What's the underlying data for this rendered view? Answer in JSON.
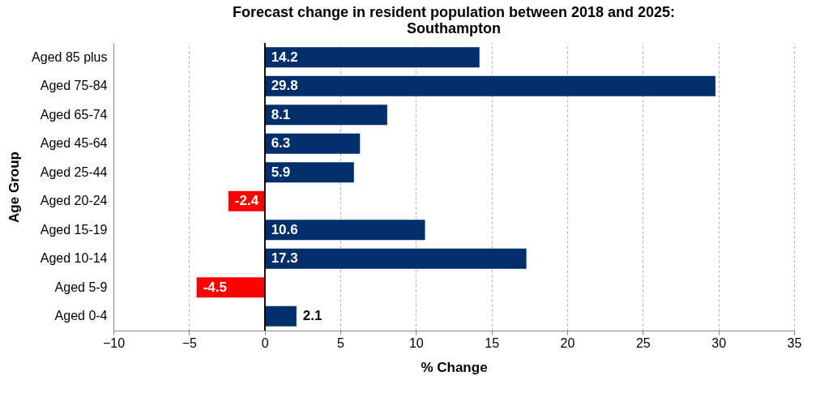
{
  "chart_data": {
    "type": "bar",
    "orientation": "horizontal",
    "title": "Forecast change in resident population between 2018 and 2025:\nSouthampton",
    "xlabel": "% Change",
    "ylabel": "Age Group",
    "categories": [
      "Aged 85 plus",
      "Aged 75-84",
      "Aged 65-74",
      "Aged 45-64",
      "Aged 25-44",
      "Aged 20-24",
      "Aged 15-19",
      "Aged 10-14",
      "Aged 5-9",
      "Aged 0-4"
    ],
    "values": [
      14.2,
      29.8,
      8.1,
      6.3,
      5.9,
      -2.4,
      10.6,
      17.3,
      -4.5,
      2.1
    ],
    "colors": [
      "#002f6c",
      "#002f6c",
      "#002f6c",
      "#002f6c",
      "#002f6c",
      "#ff0000",
      "#002f6c",
      "#002f6c",
      "#ff0000",
      "#002f6c"
    ],
    "xlim": [
      -10,
      35
    ],
    "xticks": [
      -10,
      -5,
      0,
      5,
      10,
      15,
      20,
      25,
      30,
      35
    ],
    "grid": "x",
    "data_labels": true
  }
}
